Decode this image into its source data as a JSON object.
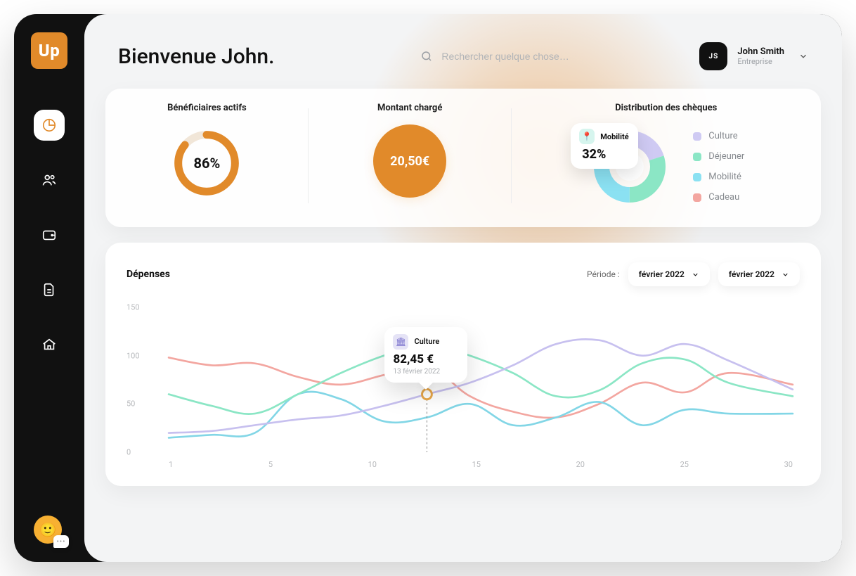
{
  "brand": {
    "logo_text": "Up",
    "logo_bg": "#e18a2a"
  },
  "header": {
    "title": "Bienvenue John.",
    "search_placeholder": "Rechercher quelque chose…"
  },
  "user": {
    "initials": "JS",
    "name": "John Smith",
    "subtitle": "Entreprise"
  },
  "sidebar": {
    "items": [
      {
        "name": "dashboard",
        "active": true
      },
      {
        "name": "people",
        "active": false
      },
      {
        "name": "wallet",
        "active": false
      },
      {
        "name": "document",
        "active": false
      },
      {
        "name": "home",
        "active": false
      }
    ]
  },
  "kpis": {
    "beneficiaries": {
      "title": "Bénéficiaires actifs",
      "percent": 86,
      "value_label": "86%",
      "ring_color": "#e18a2a",
      "ring_bg": "#f1e6d8"
    },
    "amount": {
      "title": "Montant chargé",
      "value_label": "20,50€",
      "circle_color": "#e18a2a"
    },
    "distribution": {
      "title": "Distribution des chèques",
      "chip": {
        "label": "Mobilité",
        "value": "32%",
        "icon": "📍"
      },
      "segments": [
        {
          "label": "Culture",
          "color": "#cfcaf3",
          "value": 20
        },
        {
          "label": "Déjeuner",
          "color": "#8be6c5",
          "value": 30
        },
        {
          "label": "Mobilité",
          "color": "#8be1f2",
          "value": 32
        },
        {
          "label": "Cadeau",
          "color": "#f3a6a0",
          "value": 18
        }
      ]
    }
  },
  "expenses": {
    "title": "Dépenses",
    "period_label": "Période :",
    "period_from": "février 2022",
    "period_to": "février 2022",
    "y_axis": {
      "min": 0,
      "max": 150,
      "ticks": [
        0,
        50,
        100,
        150
      ]
    },
    "x_axis": {
      "ticks": [
        1,
        5,
        10,
        15,
        20,
        25,
        30
      ]
    },
    "colors": {
      "culture": "#c7c0ef",
      "dejeuner": "#8be6c5",
      "mobilite": "#82d6e6",
      "cadeau": "#f3a6a0",
      "axis_text": "#b7b9bc"
    },
    "series": {
      "culture": {
        "x": [
          1,
          3,
          5,
          7,
          9,
          11,
          13,
          15,
          17,
          19,
          21,
          23,
          25,
          27,
          30
        ],
        "y": [
          20,
          22,
          28,
          34,
          38,
          48,
          60,
          72,
          90,
          112,
          116,
          100,
          112,
          95,
          65
        ]
      },
      "dejeuner": {
        "x": [
          1,
          3,
          5,
          7,
          9,
          11,
          13,
          15,
          17,
          19,
          21,
          23,
          25,
          27,
          30
        ],
        "y": [
          60,
          48,
          40,
          60,
          82,
          100,
          112,
          100,
          82,
          58,
          64,
          92,
          96,
          72,
          58
        ]
      },
      "mobilite": {
        "x": [
          1,
          3,
          5,
          7,
          9,
          11,
          13,
          15,
          17,
          19,
          21,
          23,
          25,
          27,
          30
        ],
        "y": [
          15,
          18,
          20,
          60,
          55,
          32,
          36,
          50,
          28,
          36,
          52,
          28,
          44,
          40,
          40
        ]
      },
      "cadeau": {
        "x": [
          1,
          3,
          5,
          7,
          9,
          11,
          13,
          15,
          17,
          19,
          21,
          23,
          25,
          27,
          30
        ],
        "y": [
          98,
          90,
          92,
          78,
          70,
          80,
          90,
          58,
          42,
          36,
          50,
          72,
          62,
          82,
          70
        ]
      }
    },
    "tooltip": {
      "x": 13,
      "y_on_line": 60,
      "series_label": "Culture",
      "value_label": "82,45 €",
      "date_label": "13 février 2022",
      "icon_bg": "#e5e3f6",
      "icon_glyph": "🏛"
    }
  }
}
